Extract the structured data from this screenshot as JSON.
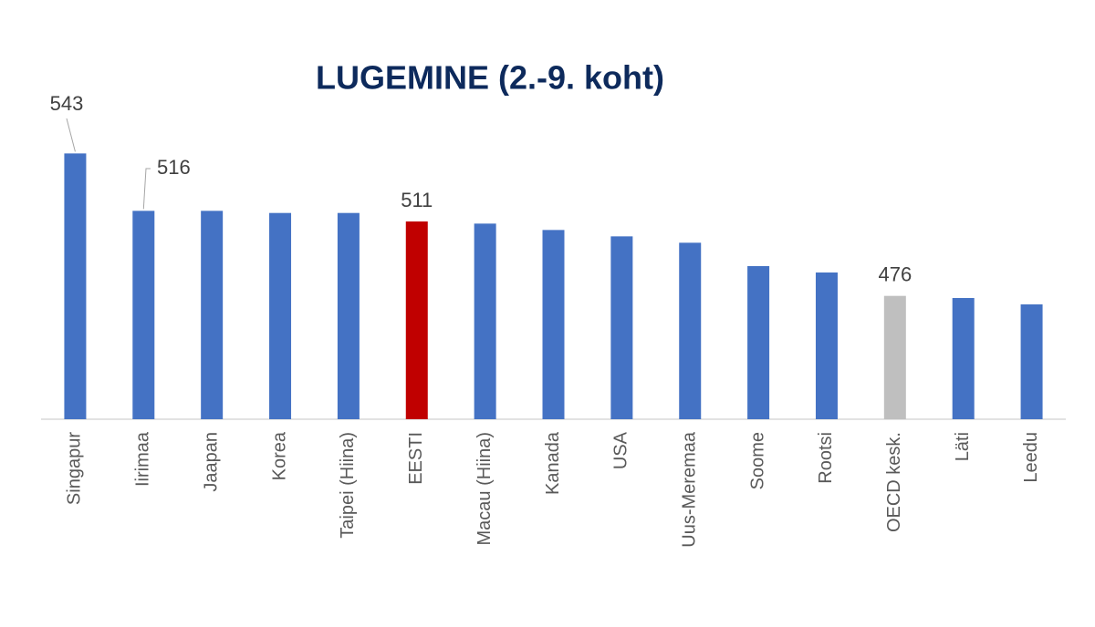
{
  "chart_data": {
    "type": "bar",
    "title": "LUGEMINE (2.-9. koht)",
    "categories": [
      "Singapur",
      "Iirimaa",
      "Jaapan",
      "Korea",
      "Taipei (Hiina)",
      "EESTI",
      "Macau (Hiina)",
      "Kanada",
      "USA",
      "Uus-Meremaa",
      "Soome",
      "Rootsi",
      "OECD kesk.",
      "Läti",
      "Leedu"
    ],
    "values": [
      543,
      516,
      516,
      515,
      515,
      511,
      510,
      507,
      504,
      501,
      490,
      487,
      476,
      475,
      472
    ],
    "value_labels": [
      "543",
      "516",
      null,
      null,
      null,
      "511",
      null,
      null,
      null,
      null,
      null,
      null,
      "476",
      null,
      null
    ],
    "colors": [
      "#4472c4",
      "#4472c4",
      "#4472c4",
      "#4472c4",
      "#4472c4",
      "#c00000",
      "#4472c4",
      "#4472c4",
      "#4472c4",
      "#4472c4",
      "#4472c4",
      "#4472c4",
      "#bfbfbf",
      "#4472c4",
      "#4472c4"
    ],
    "ylim": [
      418,
      560
    ]
  }
}
